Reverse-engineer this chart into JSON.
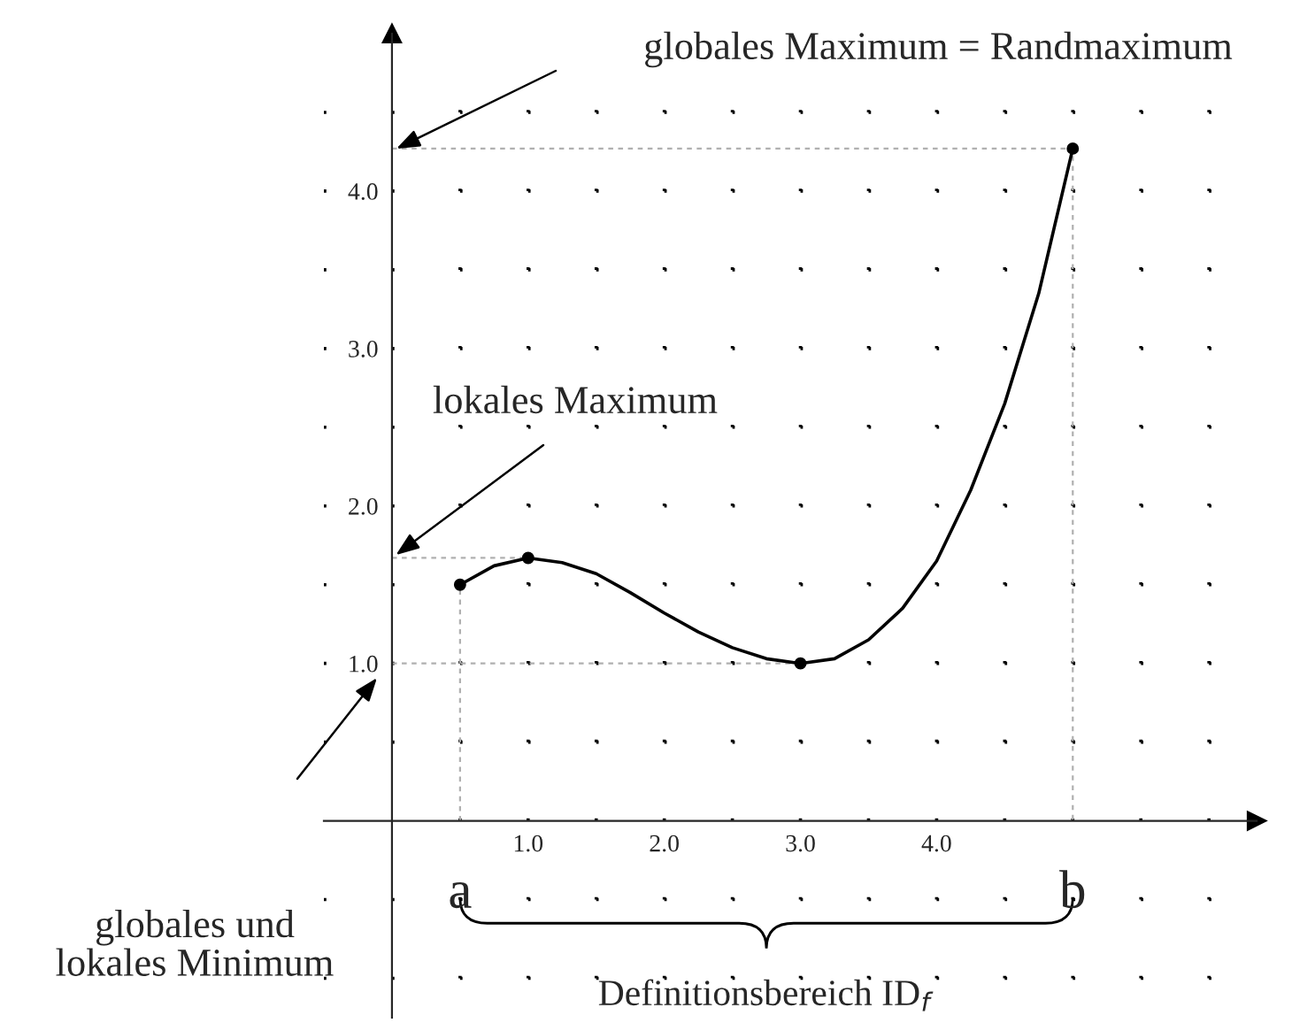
{
  "chart_data": {
    "type": "line",
    "xlim": [
      -0.5,
      6.35
    ],
    "ylim": [
      -1.25,
      5.0
    ],
    "xticks": [
      {
        "value": 0.5,
        "label": null
      },
      {
        "value": 1.0,
        "label": "1.0"
      },
      {
        "value": 1.5,
        "label": null
      },
      {
        "value": 2.0,
        "label": "2.0"
      },
      {
        "value": 2.5,
        "label": null
      },
      {
        "value": 3.0,
        "label": "3.0"
      },
      {
        "value": 3.5,
        "label": null
      },
      {
        "value": 4.0,
        "label": "4.0"
      },
      {
        "value": 4.5,
        "label": null
      },
      {
        "value": 5.0,
        "label": null
      },
      {
        "value": 5.5,
        "label": null
      },
      {
        "value": 6.0,
        "label": null
      }
    ],
    "yticks": [
      {
        "value": -1.0,
        "label": null
      },
      {
        "value": -0.5,
        "label": null
      },
      {
        "value": 0.5,
        "label": null
      },
      {
        "value": 1.0,
        "label": "1.0"
      },
      {
        "value": 1.5,
        "label": null
      },
      {
        "value": 2.0,
        "label": "2.0"
      },
      {
        "value": 2.5,
        "label": null
      },
      {
        "value": 3.0,
        "label": "3.0"
      },
      {
        "value": 3.5,
        "label": null
      },
      {
        "value": 4.0,
        "label": "4.0"
      },
      {
        "value": 4.5,
        "label": null
      }
    ],
    "grid": true,
    "series": [
      {
        "color": "#000000",
        "line_style": "solid",
        "marker": "none",
        "x": [
          0.5,
          0.75,
          1.0,
          1.25,
          1.5,
          1.75,
          2.0,
          2.25,
          2.5,
          2.75,
          3.0,
          3.25,
          3.5,
          3.75,
          4.0,
          4.25,
          4.5,
          4.75,
          5.0
        ],
        "values": [
          1.5,
          1.62,
          1.67,
          1.64,
          1.57,
          1.45,
          1.32,
          1.2,
          1.1,
          1.03,
          1.0,
          1.03,
          1.15,
          1.35,
          1.65,
          2.1,
          2.65,
          3.35,
          4.27
        ]
      },
      {
        "type": "line",
        "color": "#b0b0b0",
        "line_style": "dotted",
        "marker": "none",
        "x": [
          0,
          5.0,
          5.0
        ],
        "values": [
          4.27,
          4.27,
          0
        ]
      },
      {
        "type": "line",
        "color": "#b0b0b0",
        "line_style": "dotted",
        "marker": "none",
        "x": [
          0,
          1.0
        ],
        "values": [
          1.67,
          1.67
        ]
      },
      {
        "type": "line",
        "color": "#b0b0b0",
        "line_style": "dotted",
        "marker": "none",
        "x": [
          0,
          3.0
        ],
        "values": [
          1.0,
          1.0
        ]
      },
      {
        "type": "line",
        "color": "#b0b0b0",
        "line_style": "dotted",
        "marker": "none",
        "x": [
          0.5,
          0.5
        ],
        "values": [
          0,
          1.5
        ]
      },
      {
        "type": "scatter",
        "color": "#000000",
        "marker": "circle",
        "x": [
          0.5,
          1.0,
          3.0,
          5.0
        ],
        "values": [
          1.5,
          1.67,
          1.0,
          4.27
        ]
      }
    ],
    "annotations": [
      "globales Maximum = Randmaximum",
      {
        "text": "lokales Maximum",
        "x": 0,
        "y": 1.67
      },
      "globales und\nlokales Minimum",
      {
        "text": "a",
        "x": 0.5,
        "y": 0
      },
      {
        "text": "b",
        "x": 5.0,
        "y": 0
      },
      "Definitionsbereich ID$_{f}$"
    ]
  }
}
